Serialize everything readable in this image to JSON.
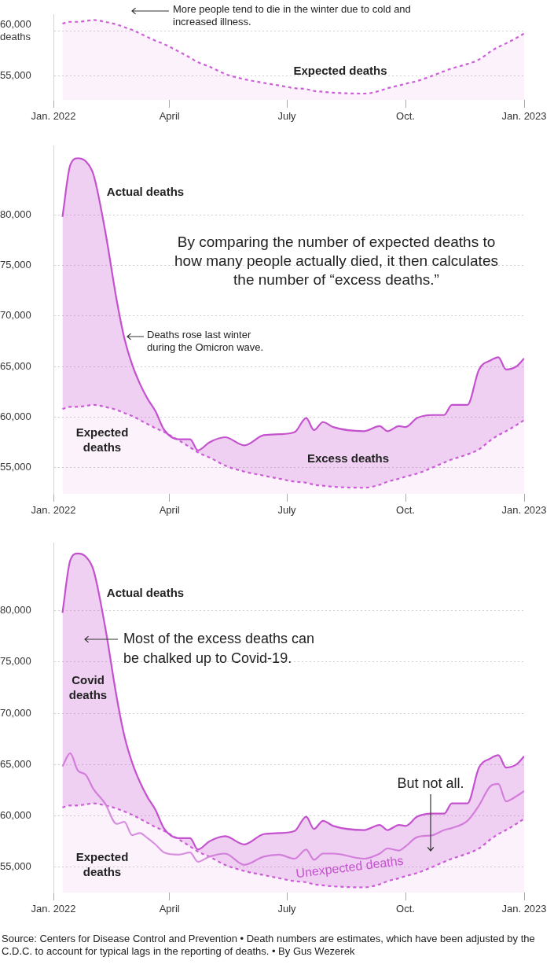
{
  "chart_data": [
    {
      "type": "area",
      "xlim": [
        "2022-01-01",
        "2023-01-01"
      ],
      "xticks": [
        {
          "value": "2022-01-01",
          "label": "Jan. 2022"
        },
        {
          "value": "2022-04-01",
          "label": "April"
        },
        {
          "value": "2022-07-01",
          "label": "July"
        },
        {
          "value": "2022-10-01",
          "label": "Oct."
        },
        {
          "value": "2023-01-01",
          "label": "Jan. 2023"
        }
      ],
      "ylim": [
        52300,
        61800
      ],
      "yticks": [
        {
          "value": 55000,
          "label": "55,000"
        },
        {
          "value": 60000,
          "label": "60,000 deaths"
        }
      ],
      "grid": "y",
      "legend": false,
      "x": [
        "2022-01-08",
        "2022-01-14",
        "2022-01-20",
        "2022-01-26",
        "2022-02-01",
        "2022-02-10",
        "2022-02-19",
        "2022-02-25",
        "2022-03-03",
        "2022-03-09",
        "2022-03-15",
        "2022-03-21",
        "2022-03-28",
        "2022-04-08",
        "2022-04-17",
        "2022-04-23",
        "2022-05-02",
        "2022-05-14",
        "2022-05-29",
        "2022-06-13",
        "2022-06-25",
        "2022-07-07",
        "2022-07-16",
        "2022-07-22",
        "2022-07-29",
        "2022-08-06",
        "2022-08-30",
        "2022-09-11",
        "2022-09-17",
        "2022-09-26",
        "2022-10-01",
        "2022-10-10",
        "2022-10-22",
        "2022-10-31",
        "2022-11-06",
        "2022-11-18",
        "2022-11-27",
        "2022-12-06",
        "2022-12-12",
        "2022-12-18",
        "2022-12-26",
        "2023-01-01"
      ],
      "series": [
        {
          "color": "#cc5fd6",
          "line_style": "dashed",
          "values": [
            60800,
            61000,
            61000,
            61100,
            61200,
            61000,
            60700,
            60400,
            60100,
            59700,
            59300,
            58900,
            58500,
            57700,
            57000,
            56500,
            56000,
            55200,
            54600,
            54200,
            53900,
            53600,
            53500,
            53300,
            53200,
            53100,
            53000,
            53300,
            53600,
            53900,
            54100,
            54400,
            55000,
            55500,
            55800,
            56300,
            56800,
            57700,
            58200,
            58600,
            59200,
            59700
          ]
        }
      ],
      "annotations": [
        "More people tend to die in the winter due to cold and increased illness.",
        "Expected deaths"
      ]
    },
    {
      "type": "area",
      "xlim": [
        "2022-01-01",
        "2023-01-01"
      ],
      "xticks": [
        {
          "value": "2022-01-01",
          "label": "Jan. 2022"
        },
        {
          "value": "2022-04-01",
          "label": "April"
        },
        {
          "value": "2022-07-01",
          "label": "July"
        },
        {
          "value": "2022-10-01",
          "label": "Oct."
        },
        {
          "value": "2023-01-01",
          "label": "Jan. 2023"
        }
      ],
      "ylim": [
        52400,
        86800
      ],
      "yticks": [
        {
          "value": 55000,
          "label": "55,000"
        },
        {
          "value": 60000,
          "label": "60,000"
        },
        {
          "value": 65000,
          "label": "65,000"
        },
        {
          "value": 70000,
          "label": "70,000"
        },
        {
          "value": 75000,
          "label": "75,000"
        },
        {
          "value": 80000,
          "label": "80,000"
        }
      ],
      "grid": "y",
      "legend": false,
      "x": [
        "2022-01-08",
        "2022-01-14",
        "2022-01-20",
        "2022-01-26",
        "2022-02-01",
        "2022-02-10",
        "2022-02-19",
        "2022-02-25",
        "2022-03-03",
        "2022-03-09",
        "2022-03-15",
        "2022-03-21",
        "2022-03-28",
        "2022-04-08",
        "2022-04-17",
        "2022-04-23",
        "2022-05-02",
        "2022-05-14",
        "2022-05-29",
        "2022-06-13",
        "2022-06-25",
        "2022-07-07",
        "2022-07-16",
        "2022-07-22",
        "2022-07-29",
        "2022-08-06",
        "2022-08-30",
        "2022-09-11",
        "2022-09-17",
        "2022-09-26",
        "2022-10-01",
        "2022-10-10",
        "2022-10-22",
        "2022-10-31",
        "2022-11-06",
        "2022-11-18",
        "2022-11-27",
        "2022-12-06",
        "2022-12-12",
        "2022-12-18",
        "2022-12-26",
        "2023-01-01"
      ],
      "series": [
        {
          "color": "#c452cf",
          "values": [
            79800,
            84900,
            85600,
            85300,
            84000,
            78500,
            71600,
            67800,
            65200,
            63300,
            61800,
            60600,
            58700,
            57800,
            57800,
            56700,
            57500,
            58000,
            57200,
            58200,
            58300,
            58500,
            59900,
            58700,
            59500,
            59000,
            58600,
            59100,
            58600,
            59100,
            59000,
            59900,
            60200,
            60200,
            61200,
            61200,
            64700,
            65600,
            65900,
            64700,
            65000,
            65800
          ]
        },
        {
          "color": "#cc5fd6",
          "line_style": "dashed",
          "values": [
            60800,
            61000,
            61000,
            61100,
            61200,
            61000,
            60700,
            60400,
            60100,
            59700,
            59300,
            58900,
            58500,
            57700,
            57000,
            56500,
            56000,
            55200,
            54600,
            54200,
            53900,
            53600,
            53500,
            53300,
            53200,
            53100,
            53000,
            53300,
            53600,
            53900,
            54100,
            54400,
            55000,
            55500,
            55800,
            56300,
            56800,
            57700,
            58200,
            58600,
            59200,
            59700
          ]
        }
      ],
      "annotations": [
        "Actual deaths",
        "By comparing the number of expected deaths to how many people actually died, it then calculates the number of “excess deaths.”",
        "Deaths rose last winter during the Omicron wave.",
        "Expected deaths",
        "Excess deaths"
      ]
    },
    {
      "type": "area",
      "xlim": [
        "2022-01-01",
        "2023-01-01"
      ],
      "xticks": [
        {
          "value": "2022-01-01",
          "label": "Jan. 2022"
        },
        {
          "value": "2022-04-01",
          "label": "April"
        },
        {
          "value": "2022-07-01",
          "label": "July"
        },
        {
          "value": "2022-10-01",
          "label": "Oct."
        },
        {
          "value": "2023-01-01",
          "label": "Jan. 2023"
        }
      ],
      "ylim": [
        52500,
        86600
      ],
      "yticks": [
        {
          "value": 55000,
          "label": "55,000"
        },
        {
          "value": 60000,
          "label": "60,000"
        },
        {
          "value": 65000,
          "label": "65,000"
        },
        {
          "value": 70000,
          "label": "70,000"
        },
        {
          "value": 75000,
          "label": "75,000"
        },
        {
          "value": 80000,
          "label": "80,000"
        }
      ],
      "grid": "y",
      "legend": false,
      "x": [
        "2022-01-08",
        "2022-01-14",
        "2022-01-20",
        "2022-01-26",
        "2022-02-01",
        "2022-02-10",
        "2022-02-19",
        "2022-02-25",
        "2022-03-03",
        "2022-03-09",
        "2022-03-15",
        "2022-03-21",
        "2022-03-28",
        "2022-04-08",
        "2022-04-17",
        "2022-04-23",
        "2022-05-02",
        "2022-05-14",
        "2022-05-29",
        "2022-06-13",
        "2022-06-25",
        "2022-07-07",
        "2022-07-16",
        "2022-07-22",
        "2022-07-29",
        "2022-08-06",
        "2022-08-30",
        "2022-09-11",
        "2022-09-17",
        "2022-09-26",
        "2022-10-01",
        "2022-10-10",
        "2022-10-22",
        "2022-10-31",
        "2022-11-06",
        "2022-11-18",
        "2022-11-27",
        "2022-12-06",
        "2022-12-12",
        "2022-12-18",
        "2022-12-26",
        "2023-01-01"
      ],
      "series": [
        {
          "color": "#c452cf",
          "values": [
            79800,
            84900,
            85600,
            85300,
            84000,
            78500,
            71600,
            67800,
            65200,
            63300,
            61800,
            60600,
            58700,
            57800,
            57800,
            56700,
            57500,
            58000,
            57200,
            58200,
            58300,
            58500,
            59900,
            58700,
            59500,
            59000,
            58600,
            59100,
            58600,
            59100,
            59000,
            59900,
            60200,
            60200,
            61200,
            61200,
            64700,
            65600,
            65900,
            64700,
            65000,
            65800
          ]
        },
        {
          "type": "line",
          "color": "#d98fdf",
          "values": [
            64800,
            66100,
            64400,
            64000,
            62600,
            61200,
            59200,
            59400,
            58100,
            58300,
            57800,
            57200,
            56400,
            56200,
            56400,
            55500,
            56000,
            56300,
            55200,
            56000,
            56200,
            55800,
            56700,
            55700,
            56300,
            56300,
            55800,
            56300,
            56800,
            56600,
            57000,
            57900,
            58100,
            58600,
            58800,
            59500,
            61000,
            62900,
            63100,
            61400,
            61900,
            62400
          ]
        },
        {
          "color": "#cc5fd6",
          "line_style": "dashed",
          "values": [
            60800,
            61000,
            61000,
            61100,
            61200,
            61000,
            60700,
            60400,
            60100,
            59700,
            59300,
            58900,
            58500,
            57700,
            57000,
            56500,
            56000,
            55200,
            54600,
            54200,
            53900,
            53600,
            53500,
            53300,
            53200,
            53100,
            53000,
            53300,
            53600,
            53900,
            54100,
            54400,
            55000,
            55500,
            55800,
            56300,
            56800,
            57700,
            58200,
            58600,
            59200,
            59700
          ]
        }
      ],
      "annotations": [
        "Actual deaths",
        "Most of the excess deaths can be chalked up to Covid-19.",
        "Covid deaths",
        "But not all.",
        "Expected deaths",
        "Unexpected deaths",
        "Source: Centers for Disease Control and Prevention  •  Death numbers are estimates, which have been adjusted by the C.D.C. to account for typical lags in the reporting of deaths.  •  By Gus Wezerek"
      ]
    }
  ]
}
